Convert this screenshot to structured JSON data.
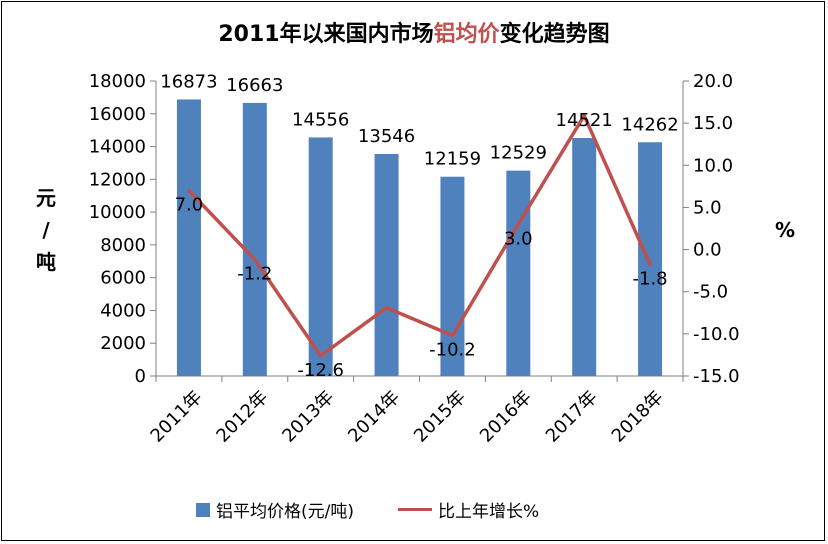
{
  "title": {
    "prefix": "2011年以来国内市场",
    "highlight": "铝均价",
    "suffix": "变化趋势图"
  },
  "axes": {
    "left_label_top": "元",
    "left_label_mid": "/",
    "left_label_bottom": "吨",
    "right_label": "%"
  },
  "legend": {
    "bar_label": "铝平均价格(元/吨)",
    "line_label": "比上年增长%"
  },
  "colors": {
    "bar": "#4f81bd",
    "line": "#c0504d",
    "grid": "#808080"
  },
  "chart_data": {
    "type": "bar+line",
    "categories": [
      "2011年",
      "2012年",
      "2013年",
      "2014年",
      "2015年",
      "2016年",
      "2017年",
      "2018年"
    ],
    "series": [
      {
        "name": "铝平均价格(元/吨)",
        "type": "bar",
        "axis": "left",
        "values": [
          16873,
          16663,
          14556,
          13546,
          12159,
          12529,
          14521,
          14262
        ],
        "labels": [
          "16873",
          "16663",
          "14556",
          "13546",
          "12159",
          "12529",
          "14521",
          "14262"
        ]
      },
      {
        "name": "比上年增长%",
        "type": "line",
        "axis": "right",
        "values": [
          7.0,
          -1.2,
          -12.6,
          -6.9,
          -10.2,
          3.0,
          15.9,
          -1.8
        ],
        "labels": [
          "7.0",
          "-1.2",
          "-12.6",
          "",
          "-10.2",
          "3.0",
          "",
          "-1.8"
        ]
      }
    ],
    "left_axis": {
      "ylim": [
        0,
        18000
      ],
      "ticks": [
        "0",
        "2000",
        "4000",
        "6000",
        "8000",
        "10000",
        "12000",
        "14000",
        "16000",
        "18000"
      ]
    },
    "right_axis": {
      "ylim": [
        -15,
        20
      ],
      "ticks": [
        "-15.0",
        "-10.0",
        "-5.0",
        "0.0",
        "5.0",
        "10.0",
        "15.0",
        "20.0"
      ]
    },
    "legend_position": "bottom",
    "grid": false
  }
}
